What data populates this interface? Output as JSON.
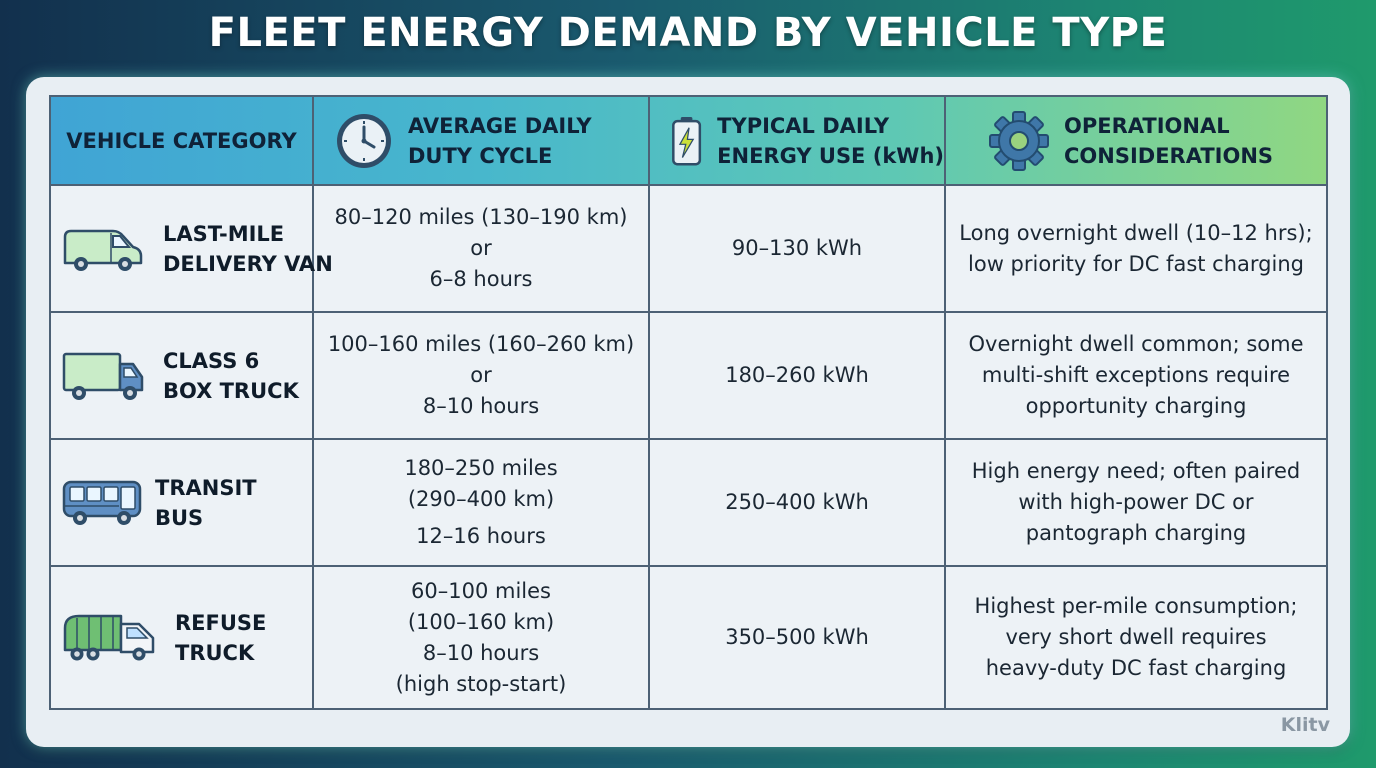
{
  "title": "FLEET ENERGY DEMAND BY VEHICLE TYPE",
  "columns": [
    {
      "label": "VEHICLE CATEGORY",
      "icon": "none"
    },
    {
      "label_lines": [
        "AVERAGE DAILY",
        "DUTY CYCLE"
      ],
      "icon": "clock-icon"
    },
    {
      "label_lines": [
        "TYPICAL DAILY",
        "ENERGY USE (kWh)"
      ],
      "icon": "battery-icon"
    },
    {
      "label_lines": [
        "OPERATIONAL",
        "CONSIDERATIONS"
      ],
      "icon": "gear-icon"
    }
  ],
  "rows": [
    {
      "category_lines": [
        "LAST-MILE",
        "DELIVERY VAN"
      ],
      "icon": "van-icon",
      "duty_lines": [
        "80–120 miles (130–190 km)",
        "or",
        "6–8 hours"
      ],
      "energy": "90–130 kWh",
      "notes_lines": [
        "Long overnight dwell (10–12 hrs);",
        "low priority for DC fast charging"
      ]
    },
    {
      "category_lines": [
        "CLASS 6",
        "BOX TRUCK"
      ],
      "icon": "box-truck-icon",
      "duty_lines": [
        "100–160 miles (160–260 km)",
        "or",
        "8–10 hours"
      ],
      "energy": "180–260 kWh",
      "notes_lines": [
        "Overnight dwell common; some",
        "multi-shift exceptions require",
        "opportunity charging"
      ]
    },
    {
      "category_lines": [
        "TRANSIT",
        "BUS"
      ],
      "icon": "bus-icon",
      "duty_lines": [
        "180–250 miles",
        "(290–400 km)",
        "12–16 hours"
      ],
      "energy": "250–400 kWh",
      "notes_lines": [
        "High energy need; often paired",
        "with high-power DC or",
        "pantograph charging"
      ]
    },
    {
      "category_lines": [
        "REFUSE",
        "TRUCK"
      ],
      "icon": "refuse-truck-icon",
      "duty_lines": [
        "60–100 miles",
        "(100–160 km)",
        "8–10 hours",
        "(high stop-start)"
      ],
      "energy": "350–500 kWh",
      "notes_lines": [
        "Highest per-mile consumption;",
        "very short dwell requires",
        "heavy-duty DC fast charging"
      ]
    }
  ],
  "watermark": "Klitv"
}
